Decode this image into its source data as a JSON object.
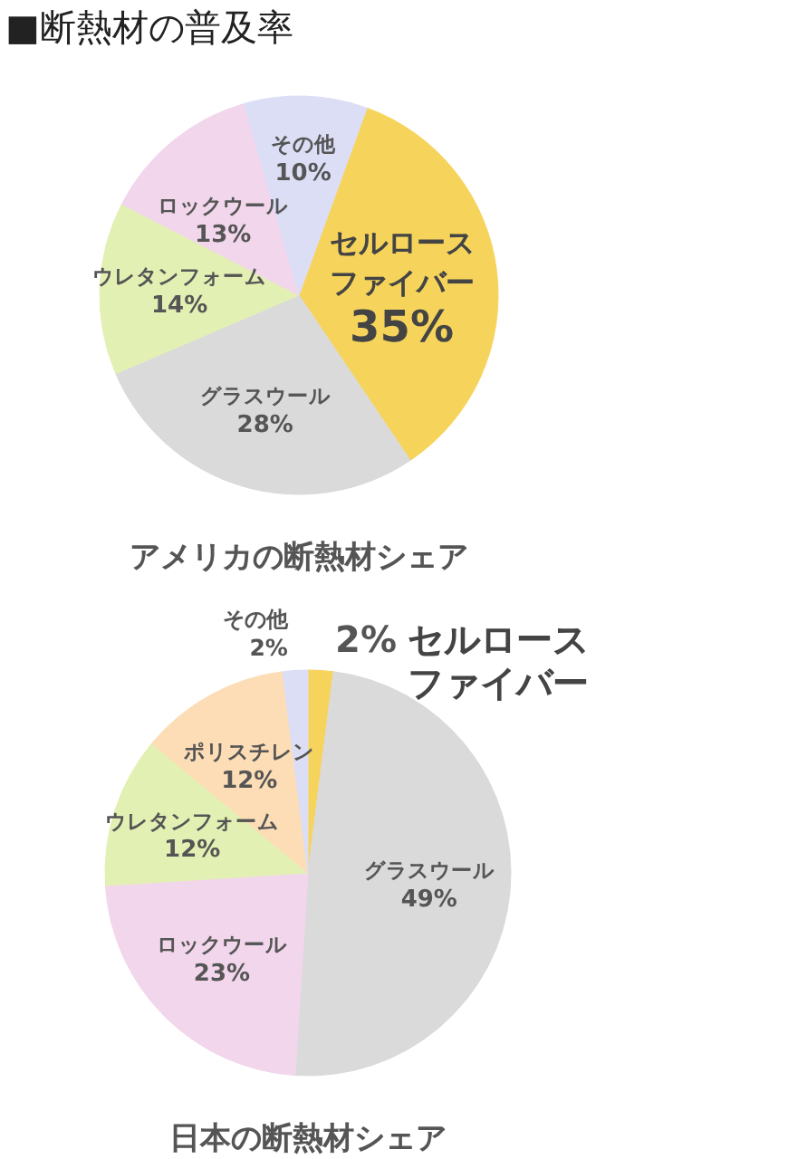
{
  "chart_data": [
    {
      "type": "pie",
      "title": "■断熱材の普及率",
      "subtitle": "アメリカの断熱材シェア",
      "categories": [
        "セルロースファイバー",
        "グラスウール",
        "ウレタンフォーム",
        "ロックウール",
        "その他"
      ],
      "values": [
        35,
        28,
        14,
        13,
        10
      ],
      "value_labels": [
        "35%",
        "28%",
        "14%",
        "13%",
        "10%"
      ],
      "colors": [
        "#f6d45c",
        "#dadada",
        "#e3f0b4",
        "#f2d6ec",
        "#dcdef6"
      ]
    },
    {
      "type": "pie",
      "title": "日本の断熱材シェア",
      "categories": [
        "セルロースファイバー",
        "グラスウール",
        "ロックウール",
        "ウレタンフォーム",
        "ポリスチレン",
        "その他"
      ],
      "values": [
        2,
        49,
        23,
        12,
        12,
        2
      ],
      "value_labels": [
        "2%",
        "49%",
        "23%",
        "12%",
        "12%",
        "2%"
      ],
      "colors": [
        "#f6d45c",
        "#dadada",
        "#f2d6ec",
        "#e3f0b4",
        "#fcddb6",
        "#dcdef6"
      ]
    }
  ]
}
